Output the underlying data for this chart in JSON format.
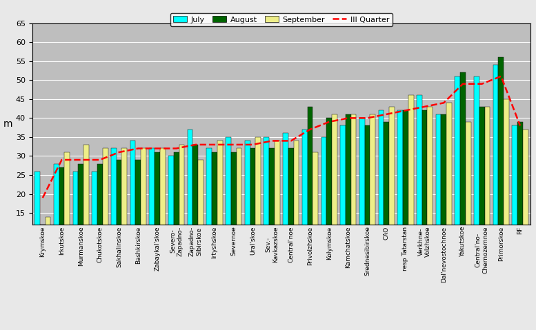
{
  "categories": [
    "Krymskoe",
    "Irkutskoe",
    "Murmanskoe",
    "Chukotskoe",
    "Sakhalinskoe",
    "Bashkirskoe",
    "Zabaykal'skoe",
    "Severo-\nZapadno-",
    "Zapadno-\nSibirskoe",
    "Irtyshskoe",
    "Severnoe",
    "Ural'skoe",
    "Sev.-\nKavkazskoe",
    "Central'noe",
    "Privolzhskoe",
    "Kolymskoe",
    "Kamchatskoe",
    "Srednesibirskoe",
    "CAO",
    "resp Tatarstan",
    "Verkhnе-\nVolzhskoe",
    "Dal'nevostochnoe",
    "Yakutskoe",
    "Central'no-\nChernozemnoe",
    "Primorskoe",
    "RF"
  ],
  "july": [
    26,
    28,
    26,
    26,
    32,
    34,
    32,
    30,
    37,
    32,
    35,
    34,
    35,
    36,
    37,
    35,
    38,
    40,
    42,
    42,
    46,
    41,
    51,
    51,
    54,
    38
  ],
  "august": [
    12,
    27,
    28,
    28,
    29,
    29,
    31,
    31,
    33,
    31,
    31,
    32,
    32,
    32,
    43,
    40,
    41,
    38,
    39,
    42,
    42,
    41,
    52,
    43,
    56,
    39
  ],
  "september": [
    14,
    31,
    33,
    32,
    32,
    32,
    32,
    33,
    29,
    34,
    32,
    35,
    34,
    34,
    31,
    41,
    41,
    41,
    43,
    46,
    43,
    44,
    39,
    43,
    45,
    37
  ],
  "quarter": [
    19,
    29,
    29,
    29,
    31,
    32,
    32,
    32,
    33,
    33,
    33,
    33,
    34,
    34,
    37,
    39,
    40,
    40,
    41,
    42,
    43,
    44,
    49,
    49,
    51,
    38
  ],
  "bar_width": 0.28,
  "ylim": [
    12,
    65
  ],
  "yticks": [
    15,
    20,
    25,
    30,
    35,
    40,
    45,
    50,
    55,
    60,
    65
  ],
  "ylabel": "m",
  "color_july": "#00FFFF",
  "color_august": "#006400",
  "color_september": "#EEEE88",
  "color_quarter": "#FF0000",
  "bg_color": "#BEBEBE",
  "fig_bg": "#E8E8E8",
  "legend_labels": [
    "July",
    "August",
    "September",
    "III Quarter"
  ]
}
